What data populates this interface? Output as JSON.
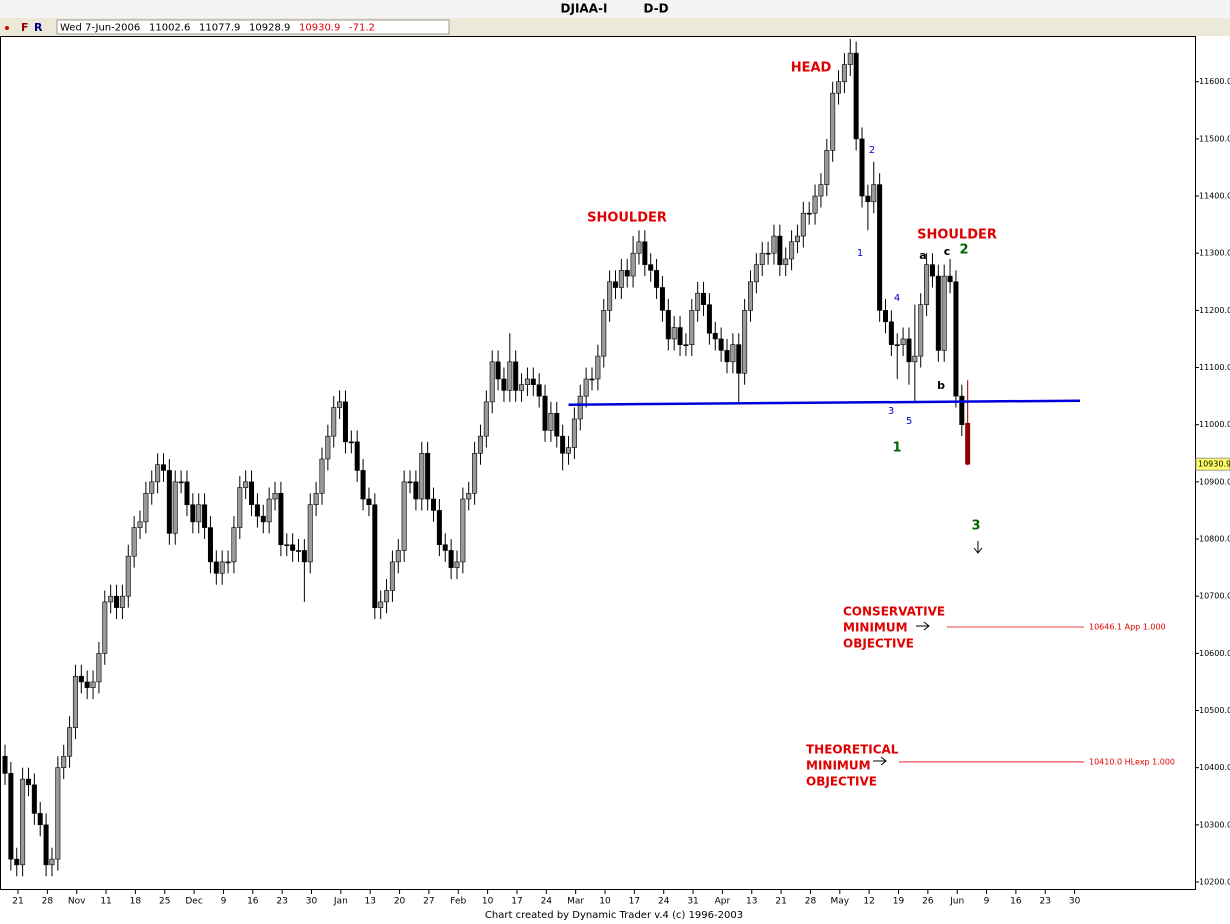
{
  "chart_data": {
    "type": "candlestick",
    "title": "DJIAA-I",
    "period": "D-D",
    "toolbar": [
      "F",
      "R"
    ],
    "info_date": "Wed 7-Jun-2006",
    "change": -71.2,
    "footer": "Chart created by Dynamic Trader v.4  (c) 1996-2003",
    "up_color": "#9a9a9a",
    "down_color": "#000000",
    "last_color": "#8b0000",
    "ylim": [
      10186,
      11680
    ],
    "yticks": [
      {
        "value": 10200,
        "label": "10200.0"
      },
      {
        "value": 10300,
        "label": "10300.0"
      },
      {
        "value": 10400,
        "label": "10400.0"
      },
      {
        "value": 10500,
        "label": "10500.0"
      },
      {
        "value": 10600,
        "label": "10600.0"
      },
      {
        "value": 10700,
        "label": "10700.0"
      },
      {
        "value": 10800,
        "label": "10800.0"
      },
      {
        "value": 10900,
        "label": "10900.0"
      },
      {
        "value": 11000,
        "label": "11000.0"
      },
      {
        "value": 11100,
        "label": "11100.0"
      },
      {
        "value": 11200,
        "label": "11200.0"
      },
      {
        "value": 11300,
        "label": "11300.0"
      },
      {
        "value": 11400,
        "label": "11400.0"
      },
      {
        "value": 11500,
        "label": "11500.0"
      },
      {
        "value": 11600,
        "label": "11600.0"
      }
    ],
    "x_tick_labels": [
      "21",
      "28",
      "Nov",
      "11",
      "18",
      "25",
      "Dec",
      "9",
      "16",
      "23",
      "30",
      "Jan",
      "13",
      "20",
      "27",
      "Feb",
      "10",
      "17",
      "24",
      "Mar",
      "10",
      "17",
      "24",
      "31",
      "Apr",
      "13",
      "21",
      "28",
      "May",
      "12",
      "19",
      "26",
      "Jun",
      "9",
      "16",
      "23",
      "30"
    ],
    "open": [
      10420,
      10390,
      10240,
      10230,
      10380,
      10370,
      10320,
      10300,
      10230,
      10240,
      10400,
      10420,
      10470,
      10560,
      10550,
      10540,
      10550,
      10600,
      10690,
      10700,
      10680,
      10700,
      10770,
      10820,
      10830,
      10880,
      10900,
      10930,
      10920,
      10810,
      10900,
      10900,
      10860,
      10830,
      10860,
      10820,
      10760,
      10740,
      10760,
      10760,
      10820,
      10890,
      10900,
      10860,
      10840,
      10830,
      10870,
      10880,
      10790,
      10790,
      10780,
      10780,
      10760,
      10860,
      10880,
      10940,
      10980,
      11030,
      11040,
      10970,
      10970,
      10920,
      10870,
      10860,
      10680,
      10690,
      10710,
      10760,
      10780,
      10900,
      10900,
      10870,
      10950,
      10870,
      10850,
      10790,
      10780,
      10750,
      10760,
      10870,
      10880,
      10950,
      10980,
      11040,
      11110,
      11080,
      11060,
      11110,
      11060,
      11070,
      11080,
      11070,
      11050,
      10990,
      11020,
      10980,
      10950,
      10960,
      11010,
      11050,
      11080,
      11080,
      11120,
      11200,
      11250,
      11240,
      11270,
      11260,
      11300,
      11320,
      11280,
      11270,
      11240,
      11200,
      11150,
      11170,
      11140,
      11140,
      11200,
      11230,
      11210,
      11160,
      11150,
      11130,
      11110,
      11140,
      11090,
      11200,
      11250,
      11280,
      11300,
      11300,
      11330,
      11280,
      11290,
      11320,
      11330,
      11370,
      11370,
      11400,
      11420,
      11480,
      11580,
      11600,
      11630,
      11650,
      11500,
      11400,
      11390,
      11420,
      11200,
      11180,
      11140,
      11140,
      11150,
      11110,
      11120,
      11210,
      11280,
      11260,
      11130,
      11260,
      11250,
      11050,
      11002.6
    ],
    "high": [
      10440,
      10410,
      10260,
      10400,
      10400,
      10390,
      10340,
      10320,
      10260,
      10420,
      10440,
      10490,
      10580,
      10580,
      10570,
      10570,
      10620,
      10710,
      10720,
      10720,
      10720,
      10790,
      10840,
      10850,
      10900,
      10920,
      10950,
      10950,
      10940,
      10920,
      10920,
      10920,
      10880,
      10880,
      10880,
      10840,
      10780,
      10780,
      10780,
      10840,
      10910,
      10920,
      10920,
      10880,
      10860,
      10890,
      10900,
      10900,
      10810,
      10810,
      10800,
      10800,
      10880,
      10900,
      10960,
      11000,
      11050,
      11060,
      11060,
      10990,
      10990,
      10940,
      10890,
      10880,
      10710,
      10730,
      10780,
      10800,
      10920,
      10920,
      10920,
      10970,
      10970,
      10890,
      10870,
      10810,
      10800,
      10780,
      10890,
      10900,
      10970,
      11000,
      11060,
      11130,
      11130,
      11100,
      11160,
      11130,
      11090,
      11100,
      11100,
      11090,
      11070,
      11040,
      11040,
      11000,
      10980,
      11030,
      11070,
      11100,
      11100,
      11140,
      11220,
      11270,
      11270,
      11290,
      11290,
      11330,
      11340,
      11340,
      11300,
      11290,
      11260,
      11220,
      11190,
      11190,
      11160,
      11220,
      11250,
      11250,
      11230,
      11180,
      11170,
      11150,
      11160,
      11160,
      11220,
      11270,
      11300,
      11320,
      11320,
      11350,
      11350,
      11310,
      11340,
      11350,
      11390,
      11390,
      11420,
      11440,
      11500,
      11600,
      11620,
      11650,
      11675,
      11670,
      11520,
      11420,
      11460,
      11440,
      11220,
      11200,
      11160,
      11170,
      11170,
      11210,
      11230,
      11300,
      11300,
      11280,
      11280,
      11290,
      11270,
      11070,
      11077.9
    ],
    "low": [
      10370,
      10220,
      10210,
      10210,
      10350,
      10300,
      10280,
      10210,
      10210,
      10220,
      10380,
      10400,
      10450,
      10530,
      10520,
      10520,
      10530,
      10580,
      10670,
      10660,
      10660,
      10680,
      10750,
      10800,
      10810,
      10860,
      10880,
      10900,
      10790,
      10790,
      10880,
      10840,
      10810,
      10810,
      10800,
      10740,
      10720,
      10720,
      10740,
      10740,
      10800,
      10870,
      10840,
      10820,
      10810,
      10810,
      10850,
      10770,
      10770,
      10760,
      10760,
      10690,
      10740,
      10840,
      10860,
      10920,
      10960,
      11010,
      10950,
      10950,
      10900,
      10850,
      10840,
      10660,
      10660,
      10670,
      10690,
      10740,
      10760,
      10880,
      10850,
      10850,
      10850,
      10830,
      10770,
      10760,
      10730,
      10730,
      10740,
      10850,
      10860,
      10930,
      10960,
      11020,
      11060,
      11040,
      11040,
      11040,
      11040,
      11050,
      11050,
      11030,
      10970,
      10970,
      10960,
      10920,
      10930,
      10940,
      10990,
      11030,
      11060,
      11060,
      11100,
      11180,
      11220,
      11220,
      11240,
      11240,
      11280,
      11260,
      11250,
      11220,
      11180,
      11130,
      11130,
      11120,
      11120,
      11120,
      11180,
      11190,
      11140,
      11130,
      11110,
      11090,
      11090,
      11040,
      11070,
      11180,
      11230,
      11260,
      11280,
      11280,
      11260,
      11260,
      11270,
      11300,
      11310,
      11350,
      11350,
      11380,
      11400,
      11460,
      11560,
      11580,
      11610,
      11480,
      11380,
      11340,
      11370,
      11180,
      11160,
      11120,
      11080,
      11120,
      11070,
      11040,
      11100,
      11190,
      11240,
      11110,
      11110,
      11230,
      11030,
      10980,
      10928.9
    ],
    "close": [
      10390,
      10240,
      10230,
      10380,
      10370,
      10320,
      10300,
      10230,
      10240,
      10400,
      10420,
      10470,
      10560,
      10550,
      10540,
      10550,
      10600,
      10690,
      10700,
      10680,
      10700,
      10770,
      10820,
      10830,
      10880,
      10900,
      10930,
      10920,
      10810,
      10900,
      10900,
      10860,
      10830,
      10860,
      10820,
      10760,
      10740,
      10760,
      10760,
      10820,
      10890,
      10900,
      10860,
      10840,
      10830,
      10870,
      10880,
      10790,
      10790,
      10780,
      10780,
      10760,
      10860,
      10880,
      10940,
      10980,
      11030,
      11040,
      10970,
      10970,
      10920,
      10870,
      10860,
      10680,
      10690,
      10710,
      10760,
      10780,
      10900,
      10900,
      10870,
      10950,
      10870,
      10850,
      10790,
      10780,
      10750,
      10760,
      10870,
      10880,
      10950,
      10980,
      11040,
      11110,
      11080,
      11060,
      11110,
      11060,
      11070,
      11080,
      11070,
      11050,
      10990,
      11020,
      10980,
      10950,
      10960,
      11010,
      11050,
      11080,
      11080,
      11120,
      11200,
      11250,
      11240,
      11270,
      11260,
      11300,
      11320,
      11280,
      11270,
      11240,
      11200,
      11150,
      11170,
      11140,
      11140,
      11200,
      11230,
      11210,
      11160,
      11150,
      11130,
      11110,
      11140,
      11090,
      11200,
      11250,
      11280,
      11300,
      11300,
      11330,
      11280,
      11290,
      11320,
      11330,
      11370,
      11370,
      11400,
      11420,
      11480,
      11580,
      11600,
      11630,
      11650,
      11500,
      11400,
      11390,
      11420,
      11200,
      11180,
      11140,
      11140,
      11150,
      11110,
      11120,
      11210,
      11280,
      11260,
      11130,
      11260,
      11250,
      11050,
      11000,
      10930.9
    ],
    "neckline": {
      "start": 11035,
      "end": 11042,
      "color": "#0000dd"
    },
    "objectives": [
      {
        "value": 10646.1,
        "label": "10646.1 App 1.000"
      },
      {
        "value": 10410.0,
        "label": "10410.0 HLexp 1.000"
      }
    ],
    "objective_color": "#e00000",
    "annotations": [
      {
        "text": "HEAD",
        "color": "#e00000"
      },
      {
        "text": "SHOULDER",
        "color": "#e00000"
      },
      {
        "text": "SHOULDER",
        "color": "#e00000"
      },
      {
        "text": "2",
        "color": "#0000cc"
      },
      {
        "text": "1",
        "color": "#0000cc"
      },
      {
        "text": "4",
        "color": "#0000cc"
      },
      {
        "text": "3",
        "color": "#0000cc"
      },
      {
        "text": "5",
        "color": "#0000cc"
      },
      {
        "text": "a",
        "color": "#000000"
      },
      {
        "text": "c",
        "color": "#000000"
      },
      {
        "text": "b",
        "color": "#000000"
      },
      {
        "text": "1",
        "color": "#006600"
      },
      {
        "text": "2",
        "color": "#006600"
      },
      {
        "text": "3",
        "color": "#006600"
      },
      {
        "text": "CONSERVATIVE",
        "color": "#e00000"
      },
      {
        "text": "MINIMUM",
        "color": "#e00000"
      },
      {
        "text": "OBJECTIVE",
        "color": "#e00000"
      },
      {
        "text": "THEORETICAL",
        "color": "#e00000"
      },
      {
        "text": "MINIMUM",
        "color": "#e00000"
      },
      {
        "text": "OBJECTIVE",
        "color": "#e00000"
      }
    ]
  }
}
